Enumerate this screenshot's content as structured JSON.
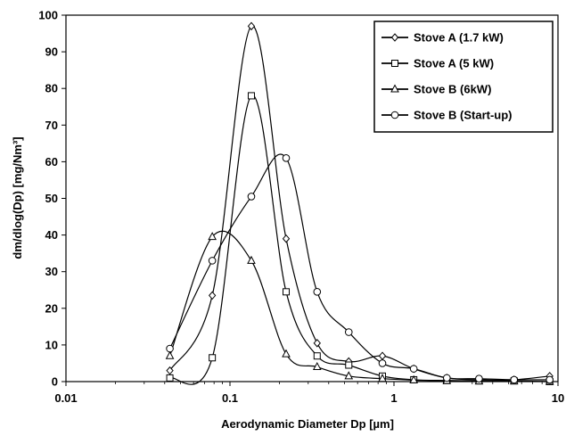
{
  "chart_data": {
    "type": "line",
    "title": "",
    "xlabel": "Aerodynamic Diameter Dp [µm]",
    "ylabel": "dm/dlog(Dp) [mg/Nm³]",
    "x_scale": "log",
    "xlim": [
      0.01,
      10
    ],
    "ylim": [
      0,
      100
    ],
    "x_ticks": [
      0.01,
      0.1,
      1,
      10
    ],
    "x_tick_labels": [
      "0.01",
      "0.1",
      "1",
      "10"
    ],
    "y_ticks": [
      0,
      10,
      20,
      30,
      40,
      50,
      60,
      70,
      80,
      90,
      100
    ],
    "y_tick_labels": [
      "0",
      "10",
      "20",
      "30",
      "40",
      "50",
      "60",
      "70",
      "80",
      "90",
      "100"
    ],
    "grid": false,
    "legend_position": "top-right",
    "series": [
      {
        "name": "Stove A (1.7 kW)",
        "marker": "diamond",
        "x": [
          0.043,
          0.078,
          0.135,
          0.22,
          0.34,
          0.53,
          0.85,
          1.32,
          2.1,
          3.3,
          5.4,
          8.9
        ],
        "y": [
          3,
          23.5,
          97,
          39,
          10.5,
          5.5,
          7,
          3.5,
          1,
          0.5,
          0.5,
          1.5
        ]
      },
      {
        "name": "Stove A (5 kW)",
        "marker": "square",
        "x": [
          0.043,
          0.078,
          0.135,
          0.22,
          0.34,
          0.53,
          0.85,
          1.32,
          2.1,
          3.3,
          5.4,
          8.9
        ],
        "y": [
          1,
          6.5,
          78,
          24.5,
          7,
          4.5,
          1.5,
          0.5,
          0.3,
          0.2,
          0.2,
          0
        ]
      },
      {
        "name": "Stove B (6kW)",
        "marker": "triangle",
        "x": [
          0.043,
          0.078,
          0.135,
          0.22,
          0.34,
          0.53,
          0.85,
          1.32,
          2.1,
          3.3,
          5.4,
          8.9
        ],
        "y": [
          7,
          39.5,
          33,
          7.5,
          4,
          1.5,
          0.8,
          0.4,
          0.2,
          0.1,
          0.1,
          0
        ]
      },
      {
        "name": "Stove B (Start-up)",
        "marker": "circle",
        "x": [
          0.043,
          0.078,
          0.135,
          0.22,
          0.34,
          0.53,
          0.85,
          1.32,
          2.1,
          3.3,
          5.4,
          8.9
        ],
        "y": [
          9,
          33,
          50.5,
          61,
          24.5,
          13.5,
          5,
          3.5,
          1,
          0.8,
          0.5,
          0.5
        ]
      }
    ]
  }
}
